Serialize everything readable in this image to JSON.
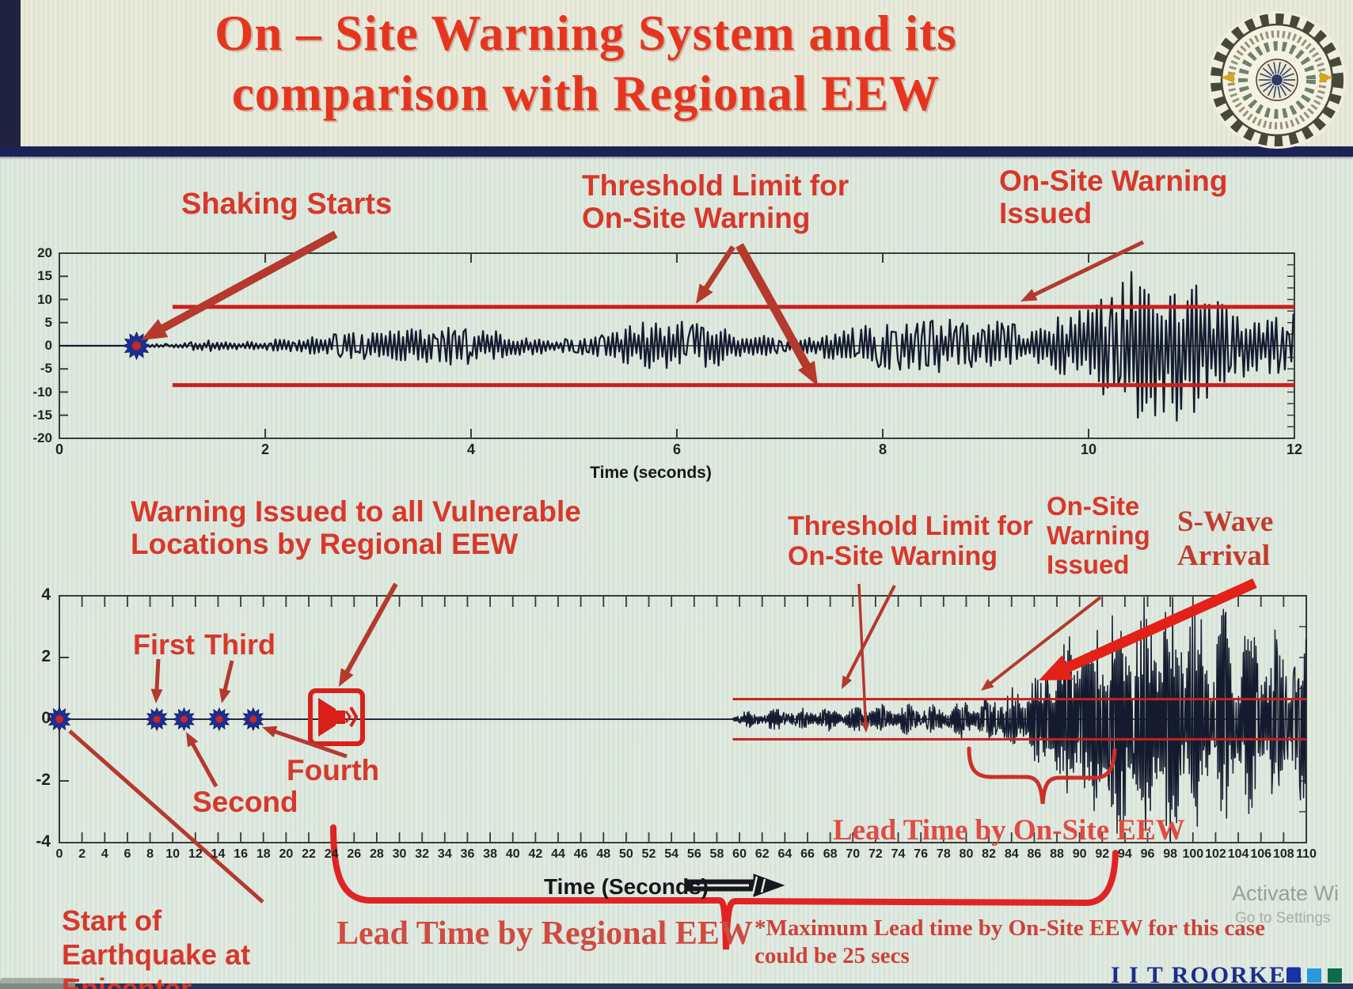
{
  "title": {
    "line1": "On – Site Warning System and its",
    "line2": "comparison with Regional EEW"
  },
  "annotations": {
    "shaking_starts": "Shaking Starts",
    "threshold_top": {
      "line1": "Threshold Limit for",
      "line2": "On-Site Warning"
    },
    "onsite_warning_top": {
      "line1": "On-Site Warning",
      "line2": "Issued"
    },
    "warning_vulnerable": {
      "line1": "Warning Issued to all Vulnerable",
      "line2": "Locations by Regional EEW"
    },
    "threshold_bottom": {
      "line1": "Threshold Limit for",
      "line2": "On-Site Warning"
    },
    "onsite_warning_bottom": {
      "line1": "On-Site",
      "line2": "Warning",
      "line3": "Issued"
    },
    "swave": {
      "line1": "S-Wave",
      "line2": "Arrival"
    },
    "lead_time_onsite": "Lead Time by On-Site EEW",
    "lead_time_regional": "Lead Time by Regional EEW",
    "start_of_earthquake": {
      "line1": "Start of",
      "line2": "Earthquake at",
      "line3": "Epicenter"
    }
  },
  "footnote": {
    "line1": "*Maximum Lead time by On-Site EEW for this case",
    "line2": "could be 25 secs"
  },
  "footer": {
    "brand": "I I T ROORKEE"
  },
  "watermark": {
    "line1": "Activate Wi",
    "line2": "Go to Settings"
  },
  "colors": {
    "title_red": "#e6351f",
    "annotation_red": "#d8372a",
    "arrow_red": "#b5392d",
    "bright_arrow_red": "#e32119",
    "threshold_red": "#c9201d",
    "trace_navy": "#141b2e",
    "navy_bar": "#1b2356",
    "brand_blue": "#1c2c8e",
    "brand_squares": [
      "#1534a3",
      "#2899dd",
      "#0c6b4c"
    ],
    "star_blue": "#1e2f93",
    "star_center_red": "#c62822"
  },
  "chart_data": [
    {
      "name": "onsite_warning_seismogram",
      "type": "line",
      "xlabel": "Time (seconds)",
      "ylabel": "",
      "xlim": [
        0,
        12
      ],
      "ylim": [
        -20,
        20
      ],
      "xticks": [
        0,
        2,
        4,
        6,
        8,
        10,
        12
      ],
      "yticks": [
        20,
        15,
        10,
        5,
        0,
        -5,
        -10,
        -15,
        -20
      ],
      "grid": false,
      "threshold": {
        "upper": 8.4,
        "lower": -8.5,
        "start_x": 1.1
      },
      "events": {
        "shaking_start_x": 0.75,
        "onsite_warning_issued_x": 9.3
      },
      "amplitude_envelope": [
        [
          0,
          0.73,
          0
        ],
        [
          0.73,
          1.2,
          0.4
        ],
        [
          1.2,
          2.0,
          1.0
        ],
        [
          2.0,
          2.35,
          2.4
        ],
        [
          2.35,
          2.9,
          4.8
        ],
        [
          2.9,
          3.7,
          3.2
        ],
        [
          3.7,
          4.5,
          3.9
        ],
        [
          4.5,
          5.4,
          3.3
        ],
        [
          5.4,
          6.4,
          4.7
        ],
        [
          6.4,
          7.3,
          3.9
        ],
        [
          7.3,
          8.4,
          4.5
        ],
        [
          8.4,
          9.0,
          5.6
        ],
        [
          9.0,
          9.6,
          8.8
        ],
        [
          9.6,
          10.3,
          11.5
        ],
        [
          10.3,
          11.1,
          14.5
        ],
        [
          11.1,
          11.7,
          11.5
        ],
        [
          11.7,
          12.01,
          13.5
        ]
      ]
    },
    {
      "name": "regional_vs_onsite_seismogram",
      "type": "line",
      "xlabel": "Time (Seconds)",
      "ylabel": "",
      "xlim": [
        0,
        110
      ],
      "ylim": [
        -4,
        4
      ],
      "xticks": [
        0,
        2,
        4,
        6,
        8,
        10,
        12,
        14,
        16,
        18,
        20,
        22,
        24,
        26,
        28,
        30,
        32,
        34,
        36,
        38,
        40,
        42,
        44,
        46,
        48,
        50,
        52,
        54,
        56,
        58,
        60,
        62,
        64,
        66,
        68,
        70,
        72,
        74,
        76,
        78,
        80,
        82,
        84,
        86,
        88,
        90,
        92,
        94,
        96,
        98,
        100,
        102,
        104,
        106,
        108,
        110
      ],
      "yticks": [
        4,
        2,
        0,
        -2,
        -4
      ],
      "grid": false,
      "threshold": {
        "upper": 0.65,
        "lower": -0.65,
        "start_x": 59.4
      },
      "p_detections": [
        {
          "label": "First",
          "x": 8.6
        },
        {
          "label": "Second",
          "x": 11.0
        },
        {
          "label": "Third",
          "x": 14.1
        },
        {
          "label": "Fourth",
          "x": 17.1
        }
      ],
      "events": {
        "epicenter_x": 0,
        "regional_warning_x": 24,
        "signal_start_x": 59.4,
        "onsite_warning_issued_x": 81,
        "s_wave_arrival_x": 86.5,
        "lead_time_onsite_span": [
          80.3,
          93.2
        ],
        "lead_time_regional_span": [
          24.2,
          93.2
        ],
        "max_lead_time_onsite_secs": 25
      },
      "amplitude_envelope": [
        [
          0,
          59.4,
          0
        ],
        [
          59.4,
          62,
          0.25
        ],
        [
          62,
          70,
          0.32
        ],
        [
          70,
          78,
          0.42
        ],
        [
          78,
          82,
          0.6
        ],
        [
          82,
          85,
          0.85
        ],
        [
          85,
          87,
          1.5
        ],
        [
          87,
          89.5,
          2.6
        ],
        [
          89.5,
          92,
          3.3
        ],
        [
          92,
          96,
          3.8
        ],
        [
          96,
          100,
          3.9
        ],
        [
          100,
          103,
          3.3
        ],
        [
          103,
          106,
          2.8
        ],
        [
          106,
          110,
          2.45
        ]
      ]
    }
  ]
}
